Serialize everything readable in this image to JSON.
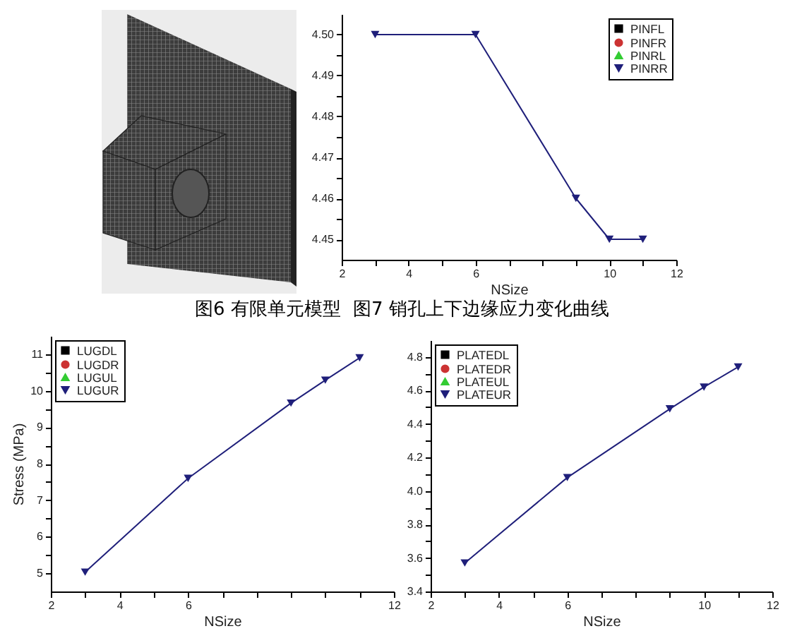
{
  "chart_data": [
    {
      "type": "line",
      "xlabel": "NSize",
      "x": [
        3,
        6,
        9,
        10,
        11
      ],
      "xlim": [
        2,
        12
      ],
      "xticks": [
        2,
        {
          "value": 3,
          "label": null
        },
        4,
        {
          "value": 5,
          "label": null
        },
        6,
        {
          "value": 7,
          "label": null
        },
        {
          "value": 8,
          "label": null
        },
        {
          "value": 9,
          "label": null
        },
        10,
        {
          "value": 11,
          "label": null
        },
        12
      ],
      "ylim": [
        4.445,
        4.505
      ],
      "yticks": [
        4.45,
        {
          "value": 4.455,
          "label": null
        },
        4.46,
        {
          "value": 4.465,
          "label": null
        },
        4.47,
        {
          "value": 4.475,
          "label": null
        },
        4.48,
        {
          "value": 4.485,
          "label": null
        },
        4.49,
        {
          "value": 4.495,
          "label": null
        },
        {
          "value": 4.5,
          "label": "4.50"
        }
      ],
      "series": [
        {
          "name": "PINFL",
          "color": "#000000",
          "marker": "square",
          "values": [
            null,
            null,
            null,
            null,
            null
          ]
        },
        {
          "name": "PINFR",
          "color": "#cc3333",
          "marker": "circle",
          "values": [
            null,
            null,
            null,
            null,
            null
          ]
        },
        {
          "name": "PINRL",
          "color": "#33cc33",
          "marker": "triangle",
          "values": [
            null,
            null,
            null,
            null,
            null
          ]
        },
        {
          "name": "PINRR",
          "color": "#1f1f7a",
          "marker": "triangle-down",
          "values": [
            4.5,
            4.5,
            4.46,
            4.45,
            4.45
          ]
        }
      ],
      "line_style": "solid",
      "grid": false,
      "legend": "top right",
      "annotations": [
        "图6 有限单元模型",
        "图7 销孔上下边缘应力变化曲线"
      ]
    },
    {
      "type": "line",
      "xlabel": "NSize",
      "ylabel": "Stress (MPa)",
      "x": [
        3,
        6,
        9,
        10,
        11
      ],
      "xlim": [
        2,
        12
      ],
      "xticks": [
        2,
        {
          "value": 3,
          "label": null
        },
        4,
        {
          "value": 5,
          "label": null
        },
        6,
        {
          "value": 7,
          "label": null
        },
        {
          "value": 8,
          "label": null
        },
        {
          "value": 9,
          "label": null
        },
        {
          "value": 10,
          "label": null
        },
        {
          "value": 11,
          "label": null
        },
        12
      ],
      "ylim": [
        4.5,
        11.5
      ],
      "yticks": [
        5,
        {
          "value": 5.5,
          "label": null
        },
        6,
        {
          "value": 6.5,
          "label": null
        },
        7,
        {
          "value": 7.5,
          "label": null
        },
        8,
        {
          "value": 8.5,
          "label": null
        },
        9,
        {
          "value": 9.5,
          "label": null
        },
        10,
        {
          "value": 10.5,
          "label": null
        },
        11
      ],
      "series": [
        {
          "name": "LUGDL",
          "color": "#000000",
          "marker": "square",
          "values": [
            null,
            null,
            null,
            null,
            null
          ]
        },
        {
          "name": "LUGDR",
          "color": "#cc3333",
          "marker": "circle",
          "values": [
            null,
            null,
            null,
            null,
            null
          ]
        },
        {
          "name": "LUGUL",
          "color": "#33cc33",
          "marker": "triangle",
          "values": [
            null,
            null,
            null,
            null,
            null
          ]
        },
        {
          "name": "LUGUR",
          "color": "#1f1f7a",
          "marker": "triangle-down",
          "values": [
            5.03,
            7.6,
            9.66,
            10.29,
            10.9
          ]
        }
      ],
      "line_style": "solid",
      "grid": false,
      "legend": "top left"
    },
    {
      "type": "line",
      "xlabel": "NSize",
      "x": [
        3,
        6,
        9,
        10,
        11
      ],
      "xlim": [
        2,
        12
      ],
      "xticks": [
        2,
        {
          "value": 3,
          "label": null
        },
        4,
        {
          "value": 5,
          "label": null
        },
        6,
        {
          "value": 7,
          "label": null
        },
        {
          "value": 8,
          "label": null
        },
        {
          "value": 9,
          "label": null
        },
        10,
        {
          "value": 11,
          "label": null
        },
        12
      ],
      "ylim": [
        3.4,
        4.9
      ],
      "yticks": [
        3.4,
        {
          "value": 3.5,
          "label": null
        },
        3.6,
        {
          "value": 3.7,
          "label": null
        },
        3.8,
        {
          "value": 3.9,
          "label": null
        },
        {
          "value": 4,
          "label": "4.0"
        },
        {
          "value": 4.1,
          "label": null
        },
        4.2,
        {
          "value": 4.3,
          "label": null
        },
        4.4,
        {
          "value": 4.5,
          "label": null
        },
        4.6,
        {
          "value": 4.7,
          "label": null
        },
        4.8
      ],
      "series": [
        {
          "name": "PLATEDL",
          "color": "#000000",
          "marker": "square",
          "values": [
            null,
            null,
            null,
            null,
            null
          ]
        },
        {
          "name": "PLATEDR",
          "color": "#cc3333",
          "marker": "circle",
          "values": [
            null,
            null,
            null,
            null,
            null
          ]
        },
        {
          "name": "PLATEUL",
          "color": "#33cc33",
          "marker": "triangle",
          "values": [
            null,
            null,
            null,
            null,
            null
          ]
        },
        {
          "name": "PLATEUR",
          "color": "#1f1f7a",
          "marker": "triangle-down",
          "values": [
            3.57,
            4.08,
            4.49,
            4.62,
            4.74
          ]
        }
      ],
      "line_style": "solid",
      "grid": false,
      "legend": "top left"
    }
  ]
}
